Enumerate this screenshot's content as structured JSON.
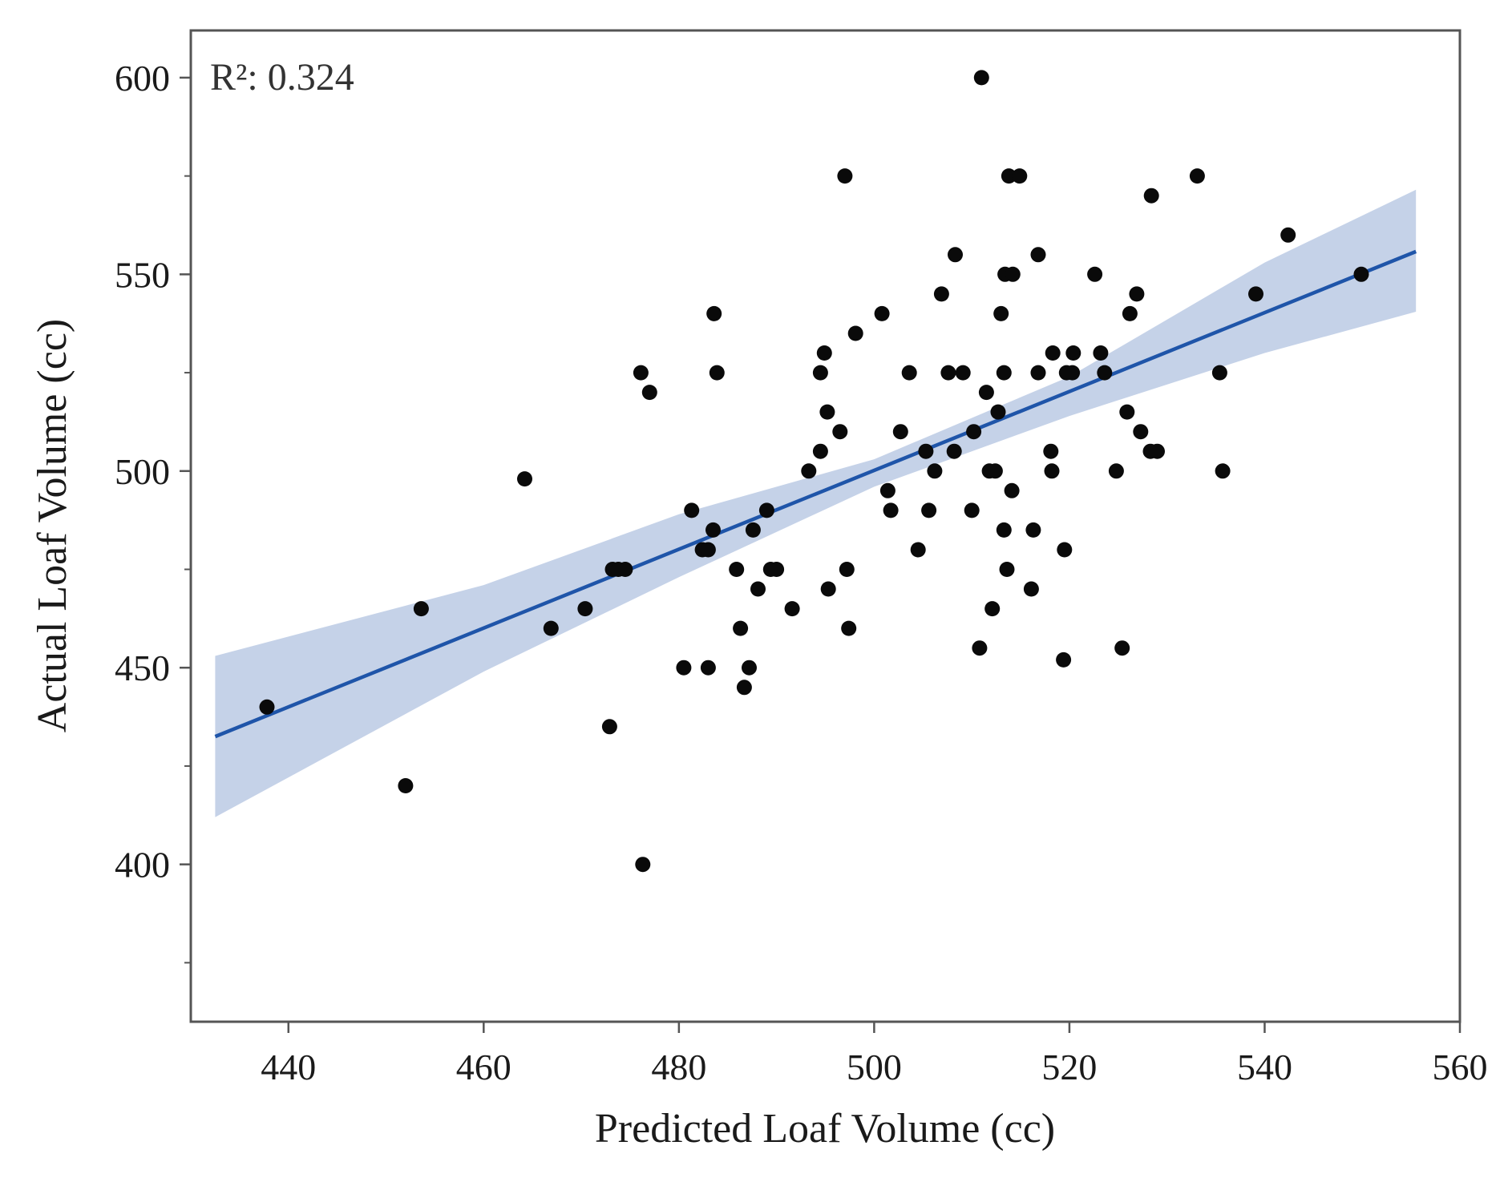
{
  "chart_data": {
    "type": "scatter",
    "title": "",
    "xlabel": "Predicted Loaf Volume (cc)",
    "ylabel": "Actual Loaf Volume (cc)",
    "annotation": "R²: 0.324",
    "xlim": [
      430,
      560
    ],
    "ylim": [
      360,
      612
    ],
    "x_ticks": [
      440,
      460,
      480,
      500,
      520,
      540,
      560
    ],
    "y_ticks": [
      400,
      450,
      500,
      550,
      600
    ],
    "y_minor_ticks": [
      375,
      425,
      475,
      525,
      575
    ],
    "grid": false,
    "fit_line": {
      "x": [
        432.5,
        555.5
      ],
      "y": [
        432.5,
        555.8
      ]
    },
    "confidence_band": {
      "x": [
        432.5,
        460,
        480,
        500,
        520,
        540,
        555.5
      ],
      "lower": [
        412.0,
        449.0,
        473.0,
        496.0,
        514.0,
        530.0,
        540.5
      ],
      "upper": [
        453.0,
        471.0,
        489.0,
        503.0,
        524.0,
        553.0,
        571.5
      ]
    },
    "points": [
      [
        437.8,
        440
      ],
      [
        452.0,
        420
      ],
      [
        453.6,
        465
      ],
      [
        464.2,
        498
      ],
      [
        466.9,
        460
      ],
      [
        470.4,
        465
      ],
      [
        472.9,
        435
      ],
      [
        473.2,
        475
      ],
      [
        473.8,
        475
      ],
      [
        474.5,
        475
      ],
      [
        476.1,
        525
      ],
      [
        477.0,
        520
      ],
      [
        476.3,
        400
      ],
      [
        480.5,
        450
      ],
      [
        481.3,
        490
      ],
      [
        482.4,
        480
      ],
      [
        483.0,
        480
      ],
      [
        483.0,
        450
      ],
      [
        483.5,
        485
      ],
      [
        483.6,
        540
      ],
      [
        483.9,
        525
      ],
      [
        485.9,
        475
      ],
      [
        486.3,
        460
      ],
      [
        486.7,
        445
      ],
      [
        487.2,
        450
      ],
      [
        487.6,
        485
      ],
      [
        488.1,
        470
      ],
      [
        489.0,
        490
      ],
      [
        489.4,
        475
      ],
      [
        490.0,
        475
      ],
      [
        491.6,
        465
      ],
      [
        493.3,
        500
      ],
      [
        494.5,
        505
      ],
      [
        494.5,
        525
      ],
      [
        494.9,
        530
      ],
      [
        495.2,
        515
      ],
      [
        495.3,
        470
      ],
      [
        496.5,
        510
      ],
      [
        497.0,
        575
      ],
      [
        497.2,
        475
      ],
      [
        497.4,
        460
      ],
      [
        498.1,
        535
      ],
      [
        500.8,
        540
      ],
      [
        501.4,
        495
      ],
      [
        501.7,
        490
      ],
      [
        502.7,
        510
      ],
      [
        503.6,
        525
      ],
      [
        504.5,
        480
      ],
      [
        505.3,
        505
      ],
      [
        505.6,
        490
      ],
      [
        506.2,
        500
      ],
      [
        506.9,
        545
      ],
      [
        507.6,
        525
      ],
      [
        508.2,
        505
      ],
      [
        508.3,
        555
      ],
      [
        509.1,
        525
      ],
      [
        510.0,
        490
      ],
      [
        510.2,
        510
      ],
      [
        510.8,
        455
      ],
      [
        511.0,
        600
      ],
      [
        511.5,
        520
      ],
      [
        511.8,
        500
      ],
      [
        512.1,
        465
      ],
      [
        512.4,
        500
      ],
      [
        512.7,
        515
      ],
      [
        513.0,
        540
      ],
      [
        513.3,
        485
      ],
      [
        513.3,
        525
      ],
      [
        513.4,
        550
      ],
      [
        513.6,
        475
      ],
      [
        513.8,
        575
      ],
      [
        514.1,
        495
      ],
      [
        514.2,
        550
      ],
      [
        514.9,
        575
      ],
      [
        516.1,
        470
      ],
      [
        516.3,
        485
      ],
      [
        516.8,
        525
      ],
      [
        516.8,
        555
      ],
      [
        518.1,
        505
      ],
      [
        518.2,
        500
      ],
      [
        518.3,
        530
      ],
      [
        519.4,
        452
      ],
      [
        519.5,
        480
      ],
      [
        519.7,
        525
      ],
      [
        520.3,
        525
      ],
      [
        520.4,
        530
      ],
      [
        522.6,
        550
      ],
      [
        523.2,
        530
      ],
      [
        523.6,
        525
      ],
      [
        524.8,
        500
      ],
      [
        525.4,
        455
      ],
      [
        525.9,
        515
      ],
      [
        526.2,
        540
      ],
      [
        526.9,
        545
      ],
      [
        527.3,
        510
      ],
      [
        528.3,
        505
      ],
      [
        528.4,
        570
      ],
      [
        529.0,
        505
      ],
      [
        533.1,
        575
      ],
      [
        535.4,
        525
      ],
      [
        535.7,
        500
      ],
      [
        539.1,
        545
      ],
      [
        542.4,
        560
      ],
      [
        549.9,
        550
      ]
    ]
  },
  "colors": {
    "line": "#1f55a9",
    "band": "#c5d2e8",
    "points": "#0a0a0a",
    "frame": "#555555"
  }
}
